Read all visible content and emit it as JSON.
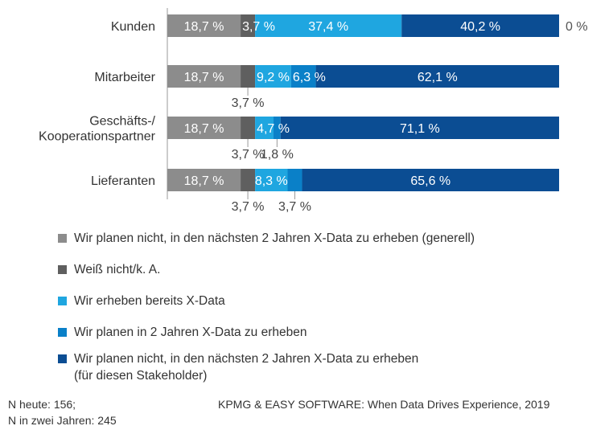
{
  "chart_data": {
    "type": "bar",
    "orientation": "horizontal",
    "stacked": true,
    "categories": [
      "Kunden",
      "Mitarbeiter",
      "Geschäfts-/\nKooperationspartner",
      "Lieferanten"
    ],
    "series": [
      {
        "name": "Wir planen nicht, in den nächsten 2 Jahren X-Data zu erheben (generell)",
        "color": "#8c8c8c",
        "values": [
          18.7,
          18.7,
          18.7,
          18.7
        ]
      },
      {
        "name": "Weiß nicht/k. A.",
        "color": "#5f5f5f",
        "values": [
          3.7,
          3.7,
          3.7,
          3.7
        ]
      },
      {
        "name": "Wir erheben bereits X-Data",
        "color": "#1fa6e0",
        "values": [
          37.4,
          9.2,
          4.7,
          8.3
        ]
      },
      {
        "name": "Wir planen in 2 Jahren X-Data zu erheben",
        "color": "#0a80c8",
        "values": [
          0,
          6.3,
          1.8,
          3.7
        ]
      },
      {
        "name": "Wir planen nicht, in den nächsten 2 Jahren X-Data zu erheben\n(für diesen Stakeholder)",
        "color": "#0b4d93",
        "values": [
          40.2,
          62.1,
          71.1,
          65.6
        ]
      }
    ],
    "labels": [
      [
        {
          "text": "18,7 %",
          "pos": "in",
          "series": 0
        },
        {
          "text": "3,7 %",
          "pos": "in",
          "series": 1
        },
        {
          "text": "37,4 %",
          "pos": "in",
          "series": 2
        },
        {
          "text": "40,2 %",
          "pos": "in",
          "series": 4
        },
        {
          "text": "0 %",
          "pos": "end"
        }
      ],
      [
        {
          "text": "18,7 %",
          "pos": "in",
          "series": 0
        },
        {
          "text": "3,7 %",
          "pos": "below",
          "series": 1
        },
        {
          "text": "9,2 %",
          "pos": "in",
          "series": 2
        },
        {
          "text": "6,3 %",
          "pos": "in",
          "series": 3
        },
        {
          "text": "62,1 %",
          "pos": "in",
          "series": 4
        }
      ],
      [
        {
          "text": "18,7 %",
          "pos": "in",
          "series": 0
        },
        {
          "text": "3,7 %",
          "pos": "below",
          "series": 1
        },
        {
          "text": "4,7 %",
          "pos": "in",
          "series": 2
        },
        {
          "text": "1,8 %",
          "pos": "below",
          "series": 3
        },
        {
          "text": "71,1 %",
          "pos": "in",
          "series": 4
        }
      ],
      [
        {
          "text": "18,7 %",
          "pos": "in",
          "series": 0
        },
        {
          "text": "3,7 %",
          "pos": "below",
          "series": 1
        },
        {
          "text": "8,3 %",
          "pos": "in",
          "series": 2
        },
        {
          "text": "3,7 %",
          "pos": "below",
          "series": 3
        },
        {
          "text": "65,6 %",
          "pos": "in",
          "series": 4
        }
      ]
    ],
    "xlim": [
      0,
      100
    ],
    "grid": false,
    "legend_position": "bottom"
  },
  "footer": {
    "sample": "N heute: 156;\nN in zwei Jahren: 245",
    "source": "KPMG & EASY SOFTWARE: When Data Drives Experience, 2019"
  }
}
